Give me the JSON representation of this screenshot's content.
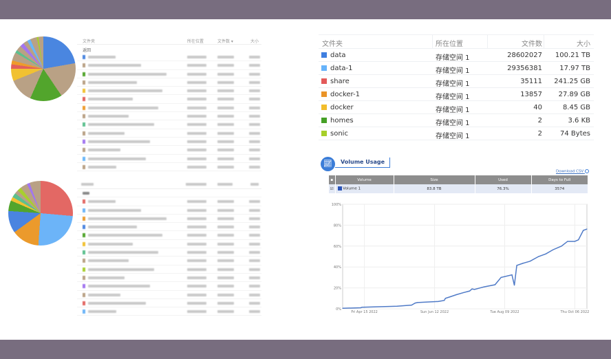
{
  "left_top_table": {
    "headers": [
      "文件夹",
      "所在位置",
      "文件数 ▾",
      "大小"
    ],
    "back_label": "返回",
    "pie": [
      {
        "color": "#4a86e0",
        "deg": 80
      },
      {
        "color": "#b9a185",
        "deg": 66
      },
      {
        "color": "#52a52c",
        "deg": 58
      },
      {
        "color": "#b9a185",
        "deg": 44
      },
      {
        "color": "#f1c132",
        "deg": 22
      },
      {
        "color": "#e25f5c",
        "deg": 8
      },
      {
        "color": "#ee9b2b",
        "deg": 7
      },
      {
        "color": "#b9a185",
        "deg": 15
      },
      {
        "color": "#5dc08f",
        "deg": 5
      },
      {
        "color": "#b9a185",
        "deg": 10
      },
      {
        "color": "#a276f0",
        "deg": 7
      },
      {
        "color": "#b9a185",
        "deg": 8
      },
      {
        "color": "#69b7fa",
        "deg": 6
      },
      {
        "color": "#b9a185",
        "deg": 12
      },
      {
        "color": "#a8cf2e",
        "deg": 3
      },
      {
        "color": "#b9a185",
        "deg": 9
      }
    ]
  },
  "left_bottom_table": {
    "pie": [
      {
        "color": "#e36864",
        "deg": 95
      },
      {
        "color": "#6cb4f8",
        "deg": 89
      },
      {
        "color": "#eb9a2c",
        "deg": 50
      },
      {
        "color": "#4a84e0",
        "deg": 40
      },
      {
        "color": "#52a52c",
        "deg": 19
      },
      {
        "color": "#f1c132",
        "deg": 7
      },
      {
        "color": "#5dc08f",
        "deg": 8
      },
      {
        "color": "#b9a185",
        "deg": 7
      },
      {
        "color": "#a8cf2e",
        "deg": 7
      },
      {
        "color": "#b9a185",
        "deg": 13
      },
      {
        "color": "#a276f0",
        "deg": 5
      },
      {
        "color": "#b9a185",
        "deg": 20
      }
    ]
  },
  "folder_table": {
    "headers": [
      "文件夹",
      "所在位置",
      "文件数",
      "大小"
    ],
    "rows": [
      {
        "name": "data",
        "location": "存储空间 1",
        "files": "28602027",
        "size": "100.21 TB",
        "color": "#3f7fe0"
      },
      {
        "name": "data-1",
        "location": "存储空间 1",
        "files": "29356381",
        "size": "17.97 TB",
        "color": "#66b3fa"
      },
      {
        "name": "share",
        "location": "存储空间 1",
        "files": "35111",
        "size": "241.25 GB",
        "color": "#e35a5a"
      },
      {
        "name": "docker-1",
        "location": "存储空间 1",
        "files": "13857",
        "size": "27.89 GB",
        "color": "#ea9428"
      },
      {
        "name": "docker",
        "location": "存储空间 1",
        "files": "40",
        "size": "8.45 GB",
        "color": "#f2bd2c"
      },
      {
        "name": "homes",
        "location": "存储空间 1",
        "files": "2",
        "size": "3.6 KB",
        "color": "#45a026"
      },
      {
        "name": "sonic",
        "location": "存储空间 1",
        "files": "2",
        "size": "74 Bytes",
        "color": "#a6cf2a"
      }
    ]
  },
  "volume_usage": {
    "title": "Volume Usage",
    "download_label": "Download CSV",
    "headers": [
      "Volume",
      "Size",
      "Used",
      "Days to Full"
    ],
    "row": {
      "volume": "Volume 1",
      "size": "83.8 TB",
      "used": "76.3%",
      "days_to_full": "3574",
      "color": "#2b55b8"
    }
  },
  "chart_data": {
    "type": "line",
    "ylim": [
      0,
      100
    ],
    "xlim": [
      "2022-03-28",
      "2022-10-16"
    ],
    "grid": true,
    "y_ticks": [
      "0%",
      "20%",
      "40%",
      "60%",
      "80%",
      "100%"
    ],
    "x_ticks": [
      {
        "date": "2022-04-15",
        "label": "Fri Apr 15 2022"
      },
      {
        "date": "2022-06-12",
        "label": "Sun Jun 12 2022"
      },
      {
        "date": "2022-08-09",
        "label": "Tue Aug 09 2022"
      },
      {
        "date": "2022-10-06",
        "label": "Thu Oct 06 2022"
      }
    ],
    "series": [
      {
        "color": "#4f7ac7",
        "points": [
          [
            "2022-03-28",
            0.5
          ],
          [
            "2022-04-12",
            1
          ],
          [
            "2022-04-13",
            1.5
          ],
          [
            "2022-05-12",
            2.5
          ],
          [
            "2022-05-24",
            3.5
          ],
          [
            "2022-05-27",
            5.5
          ],
          [
            "2022-05-29",
            6
          ],
          [
            "2022-06-15",
            7
          ],
          [
            "2022-06-20",
            8
          ],
          [
            "2022-06-21",
            10
          ],
          [
            "2022-06-25",
            11.5
          ],
          [
            "2022-06-30",
            13.5
          ],
          [
            "2022-07-06",
            15.5
          ],
          [
            "2022-07-11",
            17
          ],
          [
            "2022-07-13",
            19
          ],
          [
            "2022-07-15",
            18.5
          ],
          [
            "2022-07-23",
            21
          ],
          [
            "2022-08-01",
            23
          ],
          [
            "2022-08-06",
            30
          ],
          [
            "2022-08-15",
            32.5
          ],
          [
            "2022-08-17",
            22.5
          ],
          [
            "2022-08-19",
            41.5
          ],
          [
            "2022-08-24",
            43.5
          ],
          [
            "2022-08-30",
            45.5
          ],
          [
            "2022-09-06",
            50
          ],
          [
            "2022-09-12",
            52.5
          ],
          [
            "2022-09-18",
            56.5
          ],
          [
            "2022-09-25",
            60
          ],
          [
            "2022-09-30",
            64.5
          ],
          [
            "2022-10-06",
            64.5
          ],
          [
            "2022-10-09",
            66
          ],
          [
            "2022-10-13",
            75
          ],
          [
            "2022-10-16",
            76.3
          ]
        ]
      }
    ]
  }
}
